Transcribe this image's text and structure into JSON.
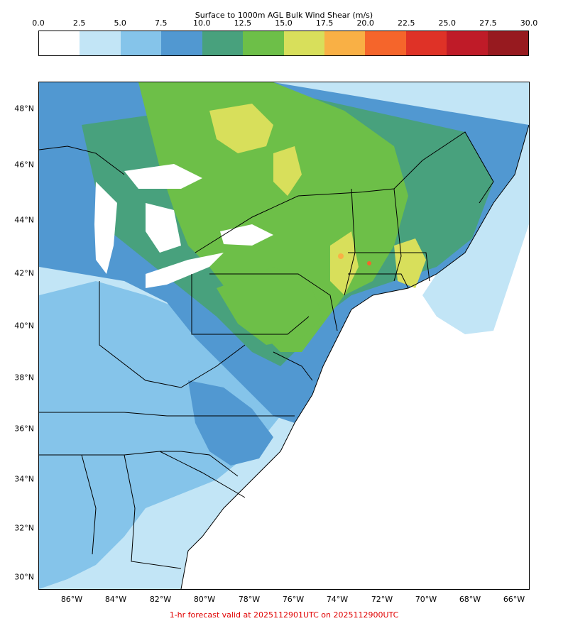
{
  "colorbar": {
    "title": "Surface to 1000m AGL Bulk Wind Shear (m/s)",
    "ticks": [
      "0.0",
      "2.5",
      "5.0",
      "7.5",
      "10.0",
      "12.5",
      "15.0",
      "17.5",
      "20.0",
      "22.5",
      "25.0",
      "27.5",
      "30.0"
    ],
    "colors": [
      "#ffffff",
      "#c2e5f6",
      "#85c4ea",
      "#5198d1",
      "#48a17d",
      "#6dbf48",
      "#d8df5b",
      "#f9b045",
      "#f5652b",
      "#df3227",
      "#bf1b28",
      "#971a1f"
    ]
  },
  "axes": {
    "lat_labels": [
      "48°N",
      "46°N",
      "44°N",
      "42°N",
      "40°N",
      "38°N",
      "36°N",
      "34°N",
      "32°N",
      "30°N"
    ],
    "lon_labels": [
      "86°W",
      "84°W",
      "82°W",
      "80°W",
      "78°W",
      "76°W",
      "74°W",
      "72°W",
      "70°W",
      "68°W",
      "66°W"
    ]
  },
  "footer": "1-hr forecast valid at 2025112901UTC on 2025112900UTC"
}
